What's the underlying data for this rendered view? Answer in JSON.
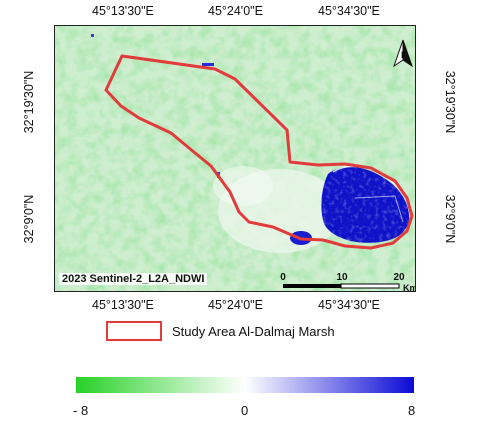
{
  "map": {
    "top_ticks": [
      "45°13'30\"E",
      "45°24'0\"E",
      "45°34'30\"E"
    ],
    "bottom_ticks": [
      "45°13'30\"E",
      "45°24'0\"E",
      "45°34'30\"E"
    ],
    "left_ticks": [
      "32°19'30\"N",
      "32°9'0\"N"
    ],
    "right_ticks": [
      "32°19'30\"N",
      "32°9'0\"N"
    ],
    "label": "2023 Sentinel-2_L2A_NDWI",
    "scale_bar": {
      "labels": [
        "0",
        "10",
        "20"
      ],
      "unit": "Km"
    },
    "north_arrow_letter": "N",
    "north_arrow_icon": "north-arrow-icon"
  },
  "legend": {
    "study_area_label": "Study Area Al-Dalmaj Marsh",
    "boundary_color": "#e23b3b"
  },
  "colorbar": {
    "min_label": "- 8",
    "mid_label": "0",
    "max_label": "8",
    "colors": [
      "#27d127",
      "#ffffff",
      "#0a0ad6"
    ]
  }
}
